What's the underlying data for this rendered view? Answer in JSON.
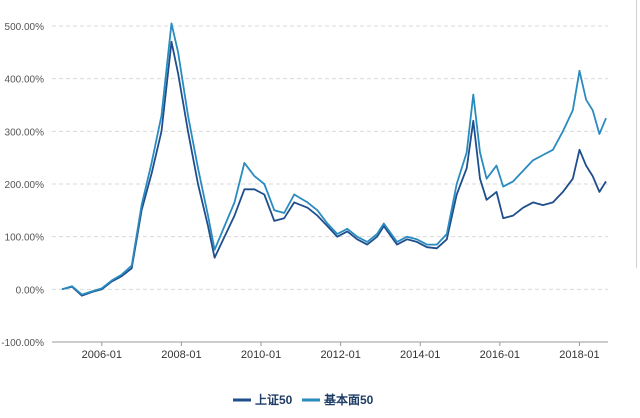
{
  "chart_data": {
    "type": "line",
    "title": "",
    "xlabel": "",
    "ylabel": "",
    "x_ticks": [
      "2006-01",
      "2008-01",
      "2010-01",
      "2012-01",
      "2014-01",
      "2016-01",
      "2018-01"
    ],
    "y_ticks": [
      "500.00%",
      "400.00%",
      "300.00%",
      "200.00%",
      "100.00%",
      "0.00%",
      "-100.00%"
    ],
    "ylim": [
      -100,
      500
    ],
    "xlim": [
      "2005-01",
      "2018-09"
    ],
    "grid": "horizontal-dashed",
    "legend": "bottom-center",
    "series": [
      {
        "name": "上证50",
        "color": "#1f4e8c",
        "points": [
          [
            "2005-01",
            0
          ],
          [
            "2005-04",
            5
          ],
          [
            "2005-07",
            -12
          ],
          [
            "2005-10",
            -5
          ],
          [
            "2006-01",
            0
          ],
          [
            "2006-04",
            15
          ],
          [
            "2006-07",
            25
          ],
          [
            "2006-10",
            40
          ],
          [
            "2007-01",
            150
          ],
          [
            "2007-04",
            220
          ],
          [
            "2007-07",
            300
          ],
          [
            "2007-10",
            470
          ],
          [
            "2007-12",
            410
          ],
          [
            "2008-03",
            300
          ],
          [
            "2008-06",
            200
          ],
          [
            "2008-09",
            120
          ],
          [
            "2008-11",
            60
          ],
          [
            "2009-02",
            100
          ],
          [
            "2009-05",
            140
          ],
          [
            "2009-08",
            190
          ],
          [
            "2009-11",
            190
          ],
          [
            "2010-02",
            180
          ],
          [
            "2010-05",
            130
          ],
          [
            "2010-08",
            135
          ],
          [
            "2010-11",
            165
          ],
          [
            "2011-03",
            155
          ],
          [
            "2011-06",
            140
          ],
          [
            "2011-09",
            120
          ],
          [
            "2011-12",
            100
          ],
          [
            "2012-03",
            110
          ],
          [
            "2012-06",
            95
          ],
          [
            "2012-09",
            85
          ],
          [
            "2012-12",
            100
          ],
          [
            "2013-02",
            120
          ],
          [
            "2013-06",
            85
          ],
          [
            "2013-09",
            95
          ],
          [
            "2013-12",
            90
          ],
          [
            "2014-03",
            80
          ],
          [
            "2014-06",
            78
          ],
          [
            "2014-09",
            95
          ],
          [
            "2014-12",
            180
          ],
          [
            "2015-03",
            230
          ],
          [
            "2015-05",
            320
          ],
          [
            "2015-07",
            210
          ],
          [
            "2015-09",
            170
          ],
          [
            "2015-12",
            185
          ],
          [
            "2016-02",
            135
          ],
          [
            "2016-05",
            140
          ],
          [
            "2016-08",
            155
          ],
          [
            "2016-11",
            165
          ],
          [
            "2017-02",
            160
          ],
          [
            "2017-05",
            165
          ],
          [
            "2017-08",
            185
          ],
          [
            "2017-11",
            210
          ],
          [
            "2018-01",
            265
          ],
          [
            "2018-03",
            235
          ],
          [
            "2018-05",
            215
          ],
          [
            "2018-07",
            185
          ],
          [
            "2018-09",
            205
          ]
        ]
      },
      {
        "name": "基本面50",
        "color": "#2a8bbf",
        "points": [
          [
            "2005-01",
            0
          ],
          [
            "2005-04",
            6
          ],
          [
            "2005-07",
            -10
          ],
          [
            "2005-10",
            -4
          ],
          [
            "2006-01",
            2
          ],
          [
            "2006-04",
            17
          ],
          [
            "2006-07",
            28
          ],
          [
            "2006-10",
            45
          ],
          [
            "2007-01",
            160
          ],
          [
            "2007-04",
            240
          ],
          [
            "2007-07",
            330
          ],
          [
            "2007-10",
            505
          ],
          [
            "2007-12",
            450
          ],
          [
            "2008-03",
            330
          ],
          [
            "2008-06",
            230
          ],
          [
            "2008-09",
            140
          ],
          [
            "2008-11",
            75
          ],
          [
            "2009-02",
            120
          ],
          [
            "2009-05",
            165
          ],
          [
            "2009-08",
            240
          ],
          [
            "2009-11",
            215
          ],
          [
            "2010-02",
            200
          ],
          [
            "2010-05",
            150
          ],
          [
            "2010-08",
            145
          ],
          [
            "2010-11",
            180
          ],
          [
            "2011-03",
            165
          ],
          [
            "2011-06",
            150
          ],
          [
            "2011-09",
            125
          ],
          [
            "2011-12",
            105
          ],
          [
            "2012-03",
            115
          ],
          [
            "2012-06",
            100
          ],
          [
            "2012-09",
            90
          ],
          [
            "2012-12",
            105
          ],
          [
            "2013-02",
            125
          ],
          [
            "2013-06",
            90
          ],
          [
            "2013-09",
            100
          ],
          [
            "2013-12",
            95
          ],
          [
            "2014-03",
            85
          ],
          [
            "2014-06",
            85
          ],
          [
            "2014-09",
            105
          ],
          [
            "2014-12",
            200
          ],
          [
            "2015-03",
            260
          ],
          [
            "2015-05",
            370
          ],
          [
            "2015-07",
            260
          ],
          [
            "2015-09",
            210
          ],
          [
            "2015-12",
            235
          ],
          [
            "2016-02",
            195
          ],
          [
            "2016-05",
            205
          ],
          [
            "2016-08",
            225
          ],
          [
            "2016-11",
            245
          ],
          [
            "2017-02",
            255
          ],
          [
            "2017-05",
            265
          ],
          [
            "2017-08",
            300
          ],
          [
            "2017-11",
            340
          ],
          [
            "2018-01",
            415
          ],
          [
            "2018-03",
            360
          ],
          [
            "2018-05",
            340
          ],
          [
            "2018-07",
            295
          ],
          [
            "2018-09",
            325
          ]
        ]
      }
    ]
  }
}
